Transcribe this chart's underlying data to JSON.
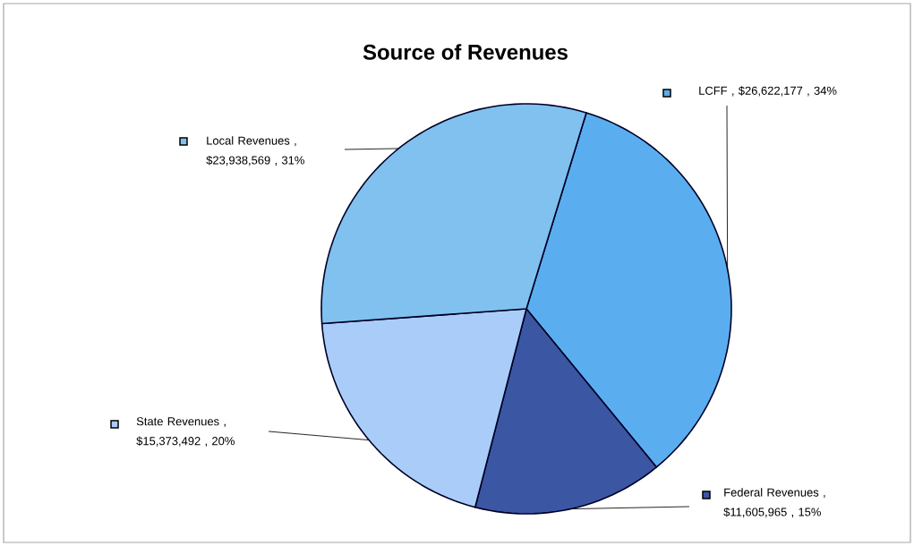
{
  "chart_data": {
    "type": "pie",
    "title": "Source of Revenues",
    "categories": [
      "LCFF",
      "Federal Revenues",
      "State Revenues",
      "Local Revenues"
    ],
    "values": [
      26622177,
      11605965,
      15373492,
      23938569
    ],
    "value_labels": [
      ", $26,622,177 , 34%",
      ", $11,605,965 , 15%",
      ", $15,373,492 , 20%",
      ", $23,938,569 , 31%"
    ],
    "colors": [
      "#5aaef0",
      "#3b56a3",
      "#a9cdf8",
      "#80c1ef"
    ],
    "legend": "left"
  }
}
